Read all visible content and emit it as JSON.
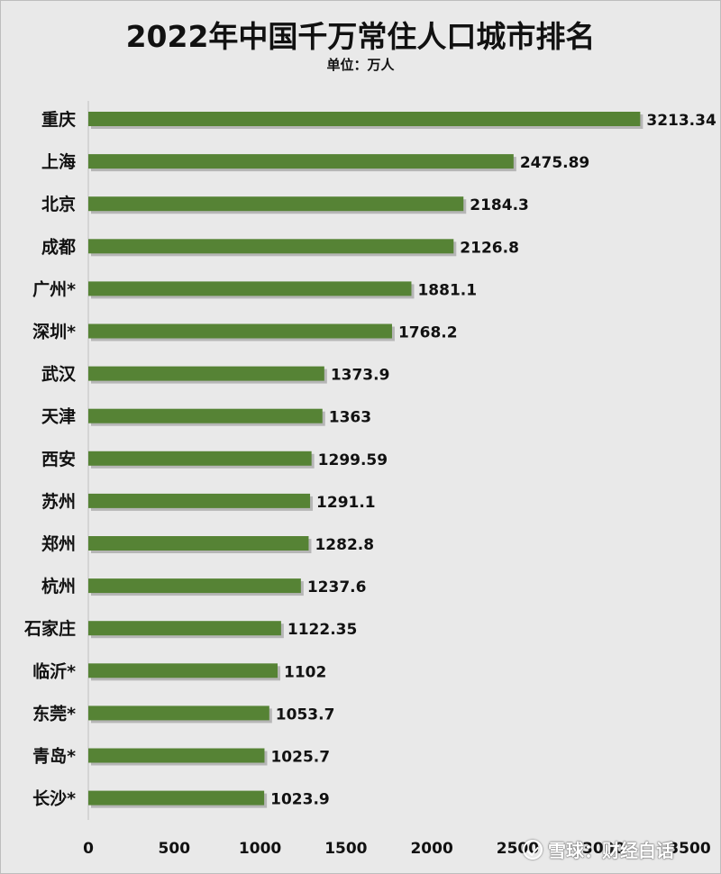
{
  "title": "2022年中国千万常住人口城市排名",
  "subtitle": "单位：万人",
  "watermark": "雪球：财经白话",
  "colors": {
    "bar": "#568335",
    "background": "#e9e9e9",
    "shadow": "#8c8c8c"
  },
  "chart_data": {
    "type": "bar",
    "orientation": "horizontal",
    "title": "2022年中国千万常住人口城市排名",
    "subtitle": "单位：万人",
    "categories": [
      "重庆",
      "上海",
      "北京",
      "成都",
      "广州*",
      "深圳*",
      "武汉",
      "天津",
      "西安",
      "苏州",
      "郑州",
      "杭州",
      "石家庄",
      "临沂*",
      "东莞*",
      "青岛*",
      "长沙*"
    ],
    "values": [
      3213.34,
      2475.89,
      2184.3,
      2126.8,
      1881.1,
      1768.2,
      1373.9,
      1363,
      1299.59,
      1291.1,
      1282.8,
      1237.6,
      1122.35,
      1102,
      1053.7,
      1025.7,
      1023.9
    ],
    "value_labels": [
      "3213.34",
      "2475.89",
      "2184.3",
      "2126.8",
      "1881.1",
      "1768.2",
      "1373.9",
      "1363",
      "1299.59",
      "1291.1",
      "1282.8",
      "1237.6",
      "1122.35",
      "1102",
      "1053.7",
      "1025.7",
      "1023.9"
    ],
    "xlim": [
      0,
      3500
    ],
    "xticks": [
      0,
      500,
      1000,
      1500,
      2000,
      2500,
      3000,
      3500
    ],
    "xtick_labels": [
      "0",
      "500",
      "1000",
      "1500",
      "2000",
      "2500",
      "3000",
      "3500"
    ],
    "grid": false,
    "legend": "none"
  }
}
